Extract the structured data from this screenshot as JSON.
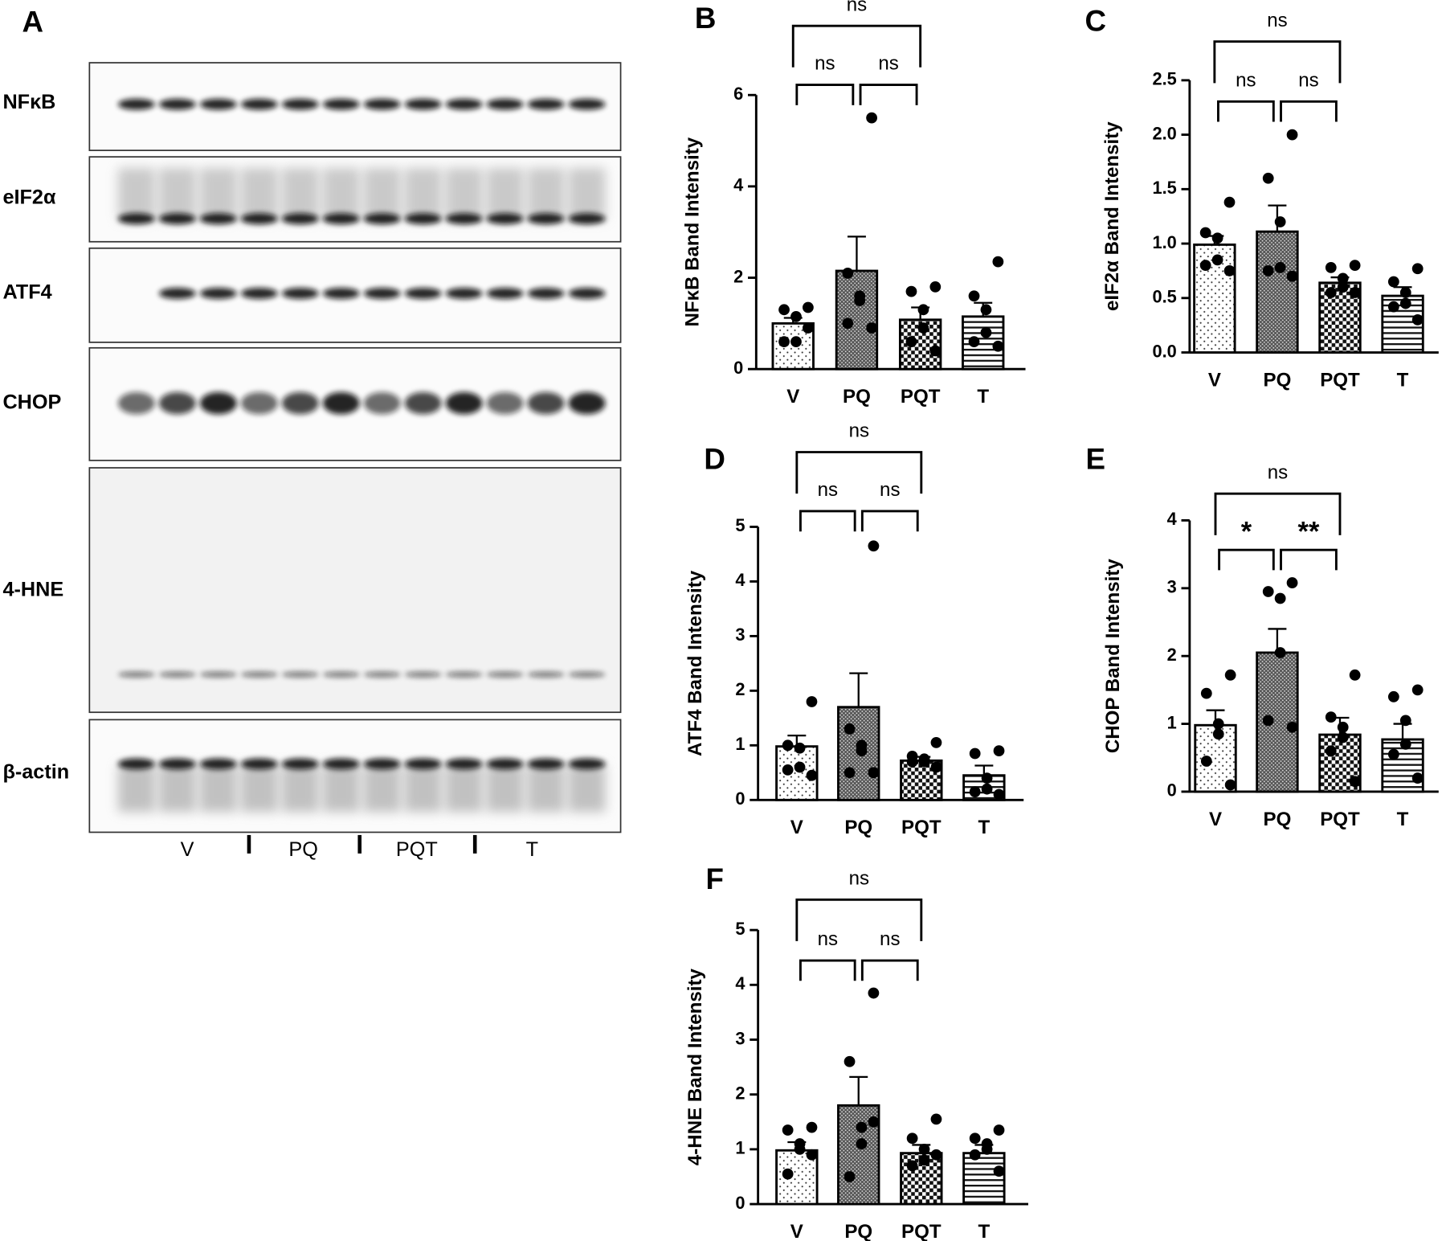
{
  "blot": {
    "panel_label": "A",
    "rows": [
      "NFκB",
      "eIF2α",
      "ATF4",
      "CHOP",
      "4-HNE",
      "β-actin"
    ],
    "groups": [
      "V",
      "PQ",
      "PQT",
      "T"
    ]
  },
  "chart_data": [
    {
      "type": "bar",
      "panel_label": "B",
      "ylabel": "NFκB Band Intensity",
      "color": "#000000",
      "categories": [
        "V",
        "PQ",
        "PQT",
        "T"
      ],
      "values": [
        1.0,
        2.15,
        1.08,
        1.15
      ],
      "errors": [
        0.12,
        0.75,
        0.27,
        0.3
      ],
      "points": [
        [
          1.35,
          1.3,
          1.15,
          0.6,
          0.6,
          0.9
        ],
        [
          5.5,
          2.1,
          1.6,
          1.5,
          1.0,
          0.9
        ],
        [
          1.8,
          1.7,
          1.3,
          0.9,
          0.6,
          0.4
        ],
        [
          2.35,
          1.6,
          1.3,
          0.8,
          0.6,
          0.5
        ]
      ],
      "ylim": [
        0,
        6
      ],
      "yticks": [
        0,
        2,
        4,
        6
      ],
      "comparisons": [
        {
          "bars": [
            0,
            2
          ],
          "label": "ns"
        },
        {
          "bars": [
            0,
            1
          ],
          "label": "ns"
        },
        {
          "bars": [
            1,
            2
          ],
          "label": "ns"
        }
      ]
    },
    {
      "type": "bar",
      "panel_label": "C",
      "ylabel": "eIF2α Band Intensity",
      "color": "#000000",
      "categories": [
        "V",
        "PQ",
        "PQT",
        "T"
      ],
      "values": [
        0.99,
        1.11,
        0.64,
        0.52
      ],
      "errors": [
        0.08,
        0.24,
        0.05,
        0.08
      ],
      "points": [
        [
          1.38,
          1.1,
          1.05,
          0.85,
          0.8,
          0.75
        ],
        [
          2.0,
          1.6,
          1.2,
          0.78,
          0.75,
          0.7
        ],
        [
          0.8,
          0.78,
          0.68,
          0.6,
          0.55,
          0.55
        ],
        [
          0.77,
          0.65,
          0.55,
          0.45,
          0.42,
          0.3
        ]
      ],
      "ylim": [
        0,
        2.5
      ],
      "yticks": [
        {
          "value": 0,
          "label": "0.0"
        },
        0.5,
        {
          "value": 1,
          "label": "1.0"
        },
        1.5,
        {
          "value": 2,
          "label": "2.0"
        },
        2.5
      ],
      "comparisons": [
        {
          "bars": [
            0,
            2
          ],
          "label": "ns"
        },
        {
          "bars": [
            0,
            1
          ],
          "label": "ns"
        },
        {
          "bars": [
            1,
            2
          ],
          "label": "ns"
        }
      ]
    },
    {
      "type": "bar",
      "panel_label": "D",
      "ylabel": "ATF4 Band Intensity",
      "color": "#000000",
      "categories": [
        "V",
        "PQ",
        "PQT",
        "T"
      ],
      "values": [
        0.98,
        1.7,
        0.72,
        0.45
      ],
      "errors": [
        0.2,
        0.62,
        0.07,
        0.18
      ],
      "points": [
        [
          1.8,
          1.0,
          0.95,
          0.6,
          0.55,
          0.45
        ],
        [
          4.65,
          1.3,
          1.0,
          0.9,
          0.5,
          0.5
        ],
        [
          1.05,
          0.8,
          0.75,
          0.7,
          0.7,
          0.6
        ],
        [
          0.9,
          0.85,
          0.4,
          0.2,
          0.15,
          0.1
        ]
      ],
      "ylim": [
        0,
        5
      ],
      "yticks": [
        0,
        1,
        2,
        3,
        4,
        5
      ],
      "comparisons": [
        {
          "bars": [
            0,
            2
          ],
          "label": "ns"
        },
        {
          "bars": [
            0,
            1
          ],
          "label": "ns"
        },
        {
          "bars": [
            1,
            2
          ],
          "label": "ns"
        }
      ]
    },
    {
      "type": "bar",
      "panel_label": "E",
      "ylabel": "CHOP Band Intensity",
      "color": "#000000",
      "categories": [
        "V",
        "PQ",
        "PQT",
        "T"
      ],
      "values": [
        0.98,
        2.05,
        0.84,
        0.77
      ],
      "errors": [
        0.22,
        0.35,
        0.25,
        0.23
      ],
      "points": [
        [
          1.72,
          1.45,
          1.0,
          0.85,
          0.45,
          0.1
        ],
        [
          3.08,
          2.95,
          2.85,
          2.05,
          1.05,
          0.95
        ],
        [
          1.72,
          1.1,
          0.95,
          0.8,
          0.6,
          0.15
        ],
        [
          1.5,
          1.4,
          1.05,
          0.7,
          0.55,
          0.2
        ]
      ],
      "ylim": [
        0,
        4
      ],
      "yticks": [
        0,
        1,
        2,
        3,
        4
      ],
      "comparisons": [
        {
          "bars": [
            0,
            2
          ],
          "label": "ns"
        },
        {
          "bars": [
            0,
            1
          ],
          "label": "*"
        },
        {
          "bars": [
            1,
            2
          ],
          "label": "**"
        }
      ]
    },
    {
      "type": "bar",
      "panel_label": "F",
      "ylabel": "4-HNE Band Intensity",
      "color": "#000000",
      "categories": [
        "V",
        "PQ",
        "PQT",
        "T"
      ],
      "values": [
        0.98,
        1.8,
        0.93,
        0.93
      ],
      "errors": [
        0.15,
        0.52,
        0.15,
        0.15
      ],
      "points": [
        [
          1.4,
          1.35,
          1.1,
          1.0,
          0.55,
          0.9
        ],
        [
          3.85,
          2.6,
          1.4,
          1.1,
          0.5,
          1.5
        ],
        [
          1.55,
          1.2,
          1.0,
          0.8,
          0.7,
          0.9
        ],
        [
          1.35,
          1.2,
          1.1,
          1.0,
          0.9,
          0.6
        ]
      ],
      "ylim": [
        0,
        5
      ],
      "yticks": [
        0,
        1,
        2,
        3,
        4,
        5
      ],
      "comparisons": [
        {
          "bars": [
            0,
            2
          ],
          "label": "ns"
        },
        {
          "bars": [
            0,
            1
          ],
          "label": "ns"
        },
        {
          "bars": [
            1,
            2
          ],
          "label": "ns"
        }
      ]
    }
  ]
}
